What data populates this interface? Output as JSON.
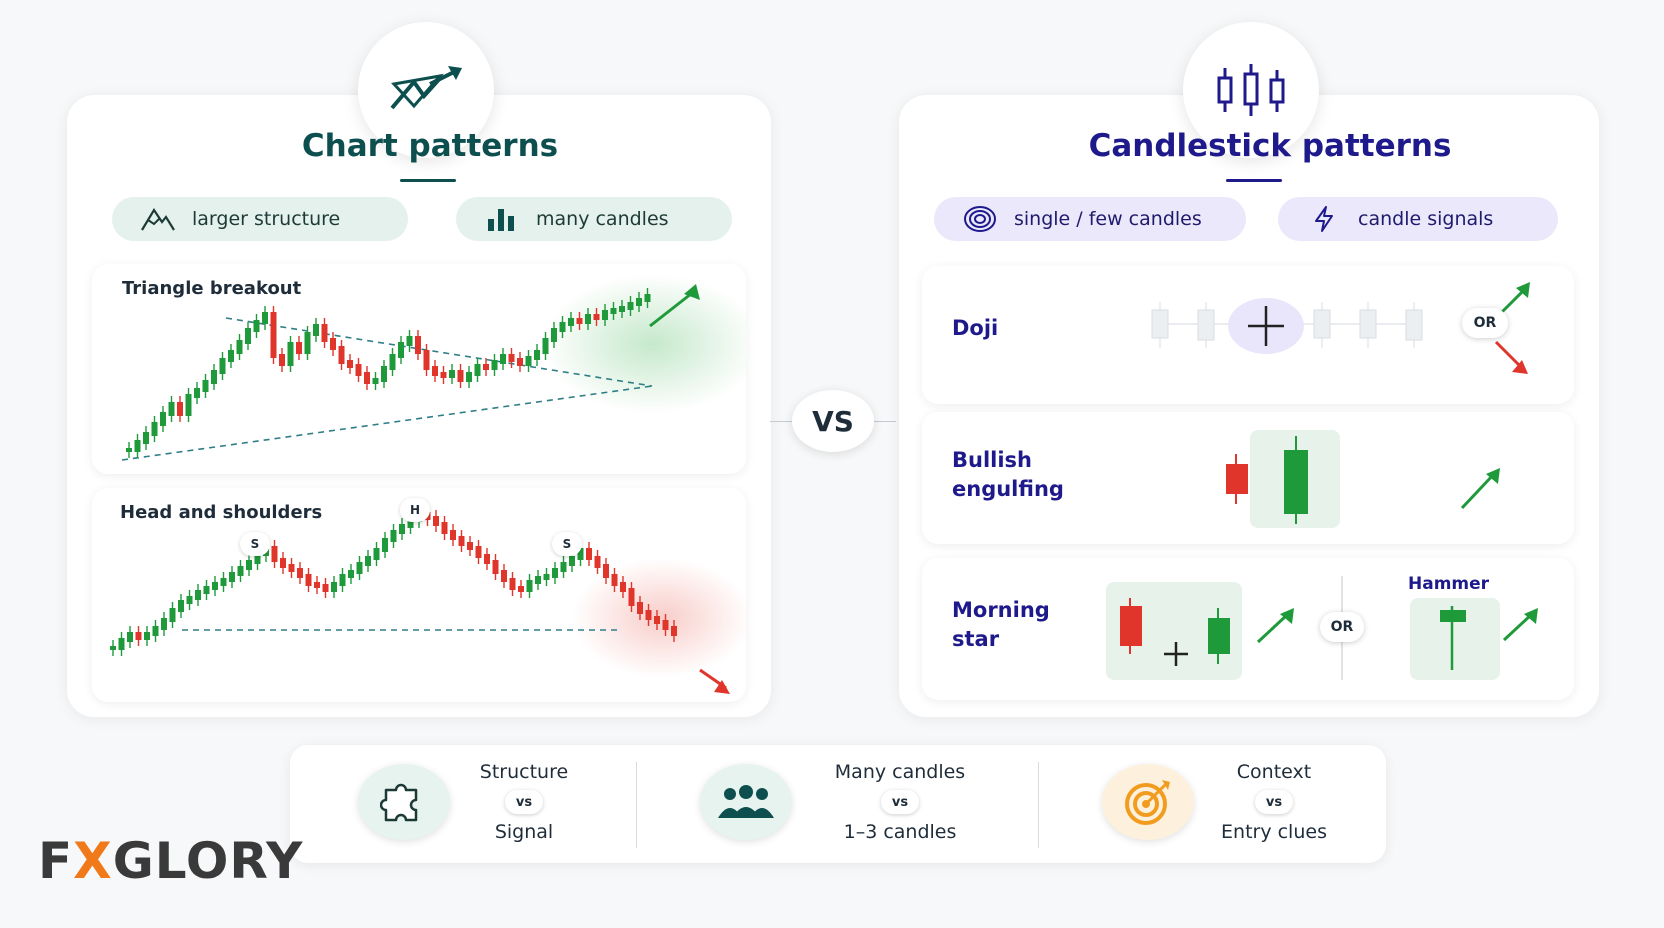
{
  "left": {
    "title": "Chart patterns",
    "pills": [
      {
        "label": "larger structure",
        "icon": "mountain-icon"
      },
      {
        "label": "many candles",
        "icon": "bar-chart-icon"
      }
    ],
    "cards": [
      {
        "title": "Triangle breakout"
      },
      {
        "title": "Head and shoulders",
        "labels": [
          "S",
          "H",
          "S"
        ]
      }
    ]
  },
  "right": {
    "title": "Candlestick patterns",
    "pills": [
      {
        "label": "single / few candles",
        "icon": "target-rings-icon"
      },
      {
        "label": "candle signals",
        "icon": "lightning-icon"
      }
    ],
    "rows": [
      {
        "label": "Doji",
        "or": "OR"
      },
      {
        "label_line1": "Bullish",
        "label_line2": "engulfing"
      },
      {
        "label_line1": "Morning",
        "label_line2": "star",
        "or": "OR",
        "hammer_label": "Hammer"
      }
    ]
  },
  "vs": "VS",
  "bottom": [
    {
      "top": "Structure",
      "vs": "vs",
      "bottom": "Signal",
      "icon": "puzzle-icon"
    },
    {
      "top": "Many candles",
      "vs": "vs",
      "bottom": "1–3 candles",
      "icon": "people-icon"
    },
    {
      "top": "Context",
      "vs": "vs",
      "bottom": "Entry clues",
      "icon": "target-icon"
    }
  ],
  "brand": {
    "pre": "F",
    "x": "X",
    "post": "GLORY"
  },
  "colors": {
    "up": "#1f9a3a",
    "down": "#e0352b",
    "teal": "#0d4f4f",
    "indigo": "#1f1a8c"
  }
}
